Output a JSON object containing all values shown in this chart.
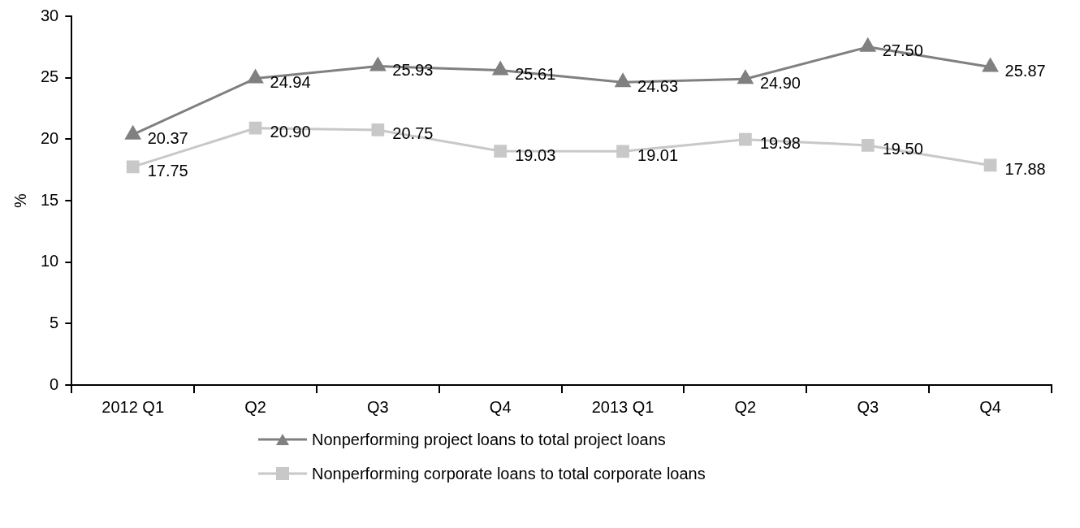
{
  "chart_data": {
    "type": "line",
    "ylabel": "%",
    "categories": [
      "2012 Q1",
      "Q2",
      "Q3",
      "Q4",
      "2013 Q1",
      "Q2",
      "Q3",
      "Q4"
    ],
    "series": [
      {
        "name": "Nonperforming project loans to total project loans",
        "color": "#808080",
        "marker": "triangle",
        "values": [
          20.37,
          24.94,
          25.93,
          25.61,
          24.63,
          24.9,
          27.5,
          25.87
        ],
        "value_labels": [
          "20.37",
          "24.94",
          "25.93",
          "25.61",
          "24.63",
          "24.90",
          "27.50",
          "25.87"
        ]
      },
      {
        "name": "Nonperforming corporate loans to total corporate loans",
        "color": "#c8c8c8",
        "marker": "square",
        "values": [
          17.75,
          20.9,
          20.75,
          19.03,
          19.01,
          19.98,
          19.5,
          17.88
        ],
        "value_labels": [
          "17.75",
          "20.90",
          "20.75",
          "19.03",
          "19.01",
          "19.98",
          "19.50",
          "17.88"
        ]
      }
    ],
    "ylim": [
      0,
      30
    ],
    "yticks": [
      0,
      5,
      10,
      15,
      20,
      25,
      30
    ],
    "grid": false,
    "legend": "bottom",
    "line_style": "solid"
  }
}
